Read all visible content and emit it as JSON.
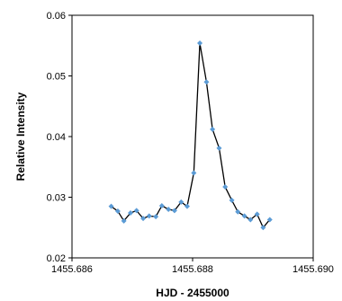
{
  "chart_data": {
    "type": "line",
    "title": "",
    "xlabel": "HJD - 2455000",
    "ylabel": "Relative Intensity",
    "xlim": [
      1455.686,
      1455.69
    ],
    "ylim": [
      0.02,
      0.06
    ],
    "x_ticks": [
      "1455.686",
      "1455.688",
      "1455.690"
    ],
    "y_ticks": [
      "0.02",
      "0.03",
      "0.04",
      "0.05",
      "0.06"
    ],
    "grid": false,
    "legend": "none",
    "series": [
      {
        "color": "#5b9bd5",
        "line_color": "#000000",
        "marker": "diamond",
        "points": [
          {
            "x": 1455.68665,
            "y": 0.0285
          },
          {
            "x": 1455.68676,
            "y": 0.0277
          },
          {
            "x": 1455.68686,
            "y": 0.0261
          },
          {
            "x": 1455.68697,
            "y": 0.0274
          },
          {
            "x": 1455.68707,
            "y": 0.0278
          },
          {
            "x": 1455.68718,
            "y": 0.0265
          },
          {
            "x": 1455.68728,
            "y": 0.0269
          },
          {
            "x": 1455.68739,
            "y": 0.0268
          },
          {
            "x": 1455.68749,
            "y": 0.0286
          },
          {
            "x": 1455.6876,
            "y": 0.028
          },
          {
            "x": 1455.6877,
            "y": 0.0278
          },
          {
            "x": 1455.68781,
            "y": 0.0292
          },
          {
            "x": 1455.68791,
            "y": 0.0285
          },
          {
            "x": 1455.68802,
            "y": 0.034
          },
          {
            "x": 1455.68812,
            "y": 0.0554
          },
          {
            "x": 1455.68823,
            "y": 0.049
          },
          {
            "x": 1455.68833,
            "y": 0.0412
          },
          {
            "x": 1455.68844,
            "y": 0.0381
          },
          {
            "x": 1455.68854,
            "y": 0.0317
          },
          {
            "x": 1455.68865,
            "y": 0.0295
          },
          {
            "x": 1455.68875,
            "y": 0.0276
          },
          {
            "x": 1455.68886,
            "y": 0.0269
          },
          {
            "x": 1455.68896,
            "y": 0.0263
          },
          {
            "x": 1455.68907,
            "y": 0.0272
          },
          {
            "x": 1455.68917,
            "y": 0.025
          },
          {
            "x": 1455.68928,
            "y": 0.0263
          }
        ]
      }
    ]
  }
}
